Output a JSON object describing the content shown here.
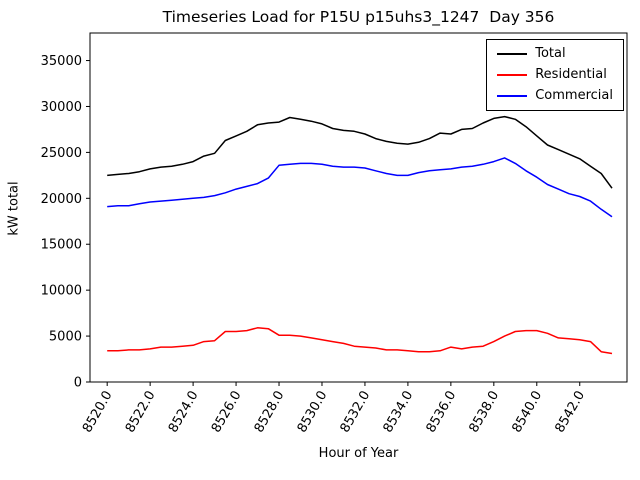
{
  "chart_data": {
    "type": "line",
    "title": "Timeseries Load for P15U p15uhs3_1247  Day 356",
    "xlabel": "Hour of Year",
    "ylabel": "kW total",
    "xlim": [
      8519.2,
      8544.2
    ],
    "ylim": [
      0,
      38000
    ],
    "grid": false,
    "legend_position": "upper right",
    "xticks": [
      8520,
      8522,
      8524,
      8526,
      8528,
      8530,
      8532,
      8534,
      8536,
      8538,
      8540,
      8542
    ],
    "xtick_labels": [
      "8520.0",
      "8522.0",
      "8524.0",
      "8526.0",
      "8528.0",
      "8530.0",
      "8532.0",
      "8534.0",
      "8536.0",
      "8538.0",
      "8540.0",
      "8542.0"
    ],
    "yticks": [
      0,
      5000,
      10000,
      15000,
      20000,
      25000,
      30000,
      35000
    ],
    "ytick_labels": [
      "0",
      "5000",
      "10000",
      "15000",
      "20000",
      "25000",
      "30000",
      "35000"
    ],
    "x": [
      8520.0,
      8520.5,
      8521.0,
      8521.5,
      8522.0,
      8522.5,
      8523.0,
      8523.5,
      8524.0,
      8524.5,
      8525.0,
      8525.5,
      8526.0,
      8526.5,
      8527.0,
      8527.5,
      8528.0,
      8528.5,
      8529.0,
      8529.5,
      8530.0,
      8530.5,
      8531.0,
      8531.5,
      8532.0,
      8532.5,
      8533.0,
      8533.5,
      8534.0,
      8534.5,
      8535.0,
      8535.5,
      8536.0,
      8536.5,
      8537.0,
      8537.5,
      8538.0,
      8538.5,
      8539.0,
      8539.5,
      8540.0,
      8540.5,
      8541.0,
      8541.5,
      8542.0,
      8542.5,
      8543.0,
      8543.5
    ],
    "series": [
      {
        "name": "Total",
        "color": "#000000",
        "values": [
          22500,
          22600,
          22700,
          22900,
          23200,
          23400,
          23500,
          23700,
          24000,
          24600,
          24900,
          26300,
          26800,
          27300,
          28000,
          28200,
          28300,
          28800,
          28600,
          28400,
          28100,
          27600,
          27400,
          27300,
          27000,
          26500,
          26200,
          26000,
          25900,
          26100,
          26500,
          27100,
          27000,
          27500,
          27600,
          28200,
          28700,
          28900,
          28600,
          27800,
          26800,
          25800,
          25300,
          24800,
          24300,
          23500,
          22700,
          21100
        ]
      },
      {
        "name": "Residential",
        "color": "#ff0000",
        "values": [
          3400,
          3400,
          3500,
          3500,
          3600,
          3800,
          3800,
          3900,
          4000,
          4400,
          4500,
          5500,
          5500,
          5600,
          5900,
          5800,
          5100,
          5100,
          5000,
          4800,
          4600,
          4400,
          4200,
          3900,
          3800,
          3700,
          3500,
          3500,
          3400,
          3300,
          3300,
          3400,
          3800,
          3600,
          3800,
          3900,
          4400,
          5000,
          5500,
          5600,
          5600,
          5300,
          4800,
          4700,
          4600,
          4400,
          3300,
          3100
        ]
      },
      {
        "name": "Commercial",
        "color": "#0000ff",
        "values": [
          19100,
          19200,
          19200,
          19400,
          19600,
          19700,
          19800,
          19900,
          20000,
          20100,
          20300,
          20600,
          21000,
          21300,
          21600,
          22200,
          23600,
          23700,
          23800,
          23800,
          23700,
          23500,
          23400,
          23400,
          23300,
          23000,
          22700,
          22500,
          22500,
          22800,
          23000,
          23100,
          23200,
          23400,
          23500,
          23700,
          24000,
          24400,
          23800,
          23000,
          22300,
          21500,
          21000,
          20500,
          20200,
          19700,
          18800,
          18000
        ]
      }
    ]
  }
}
